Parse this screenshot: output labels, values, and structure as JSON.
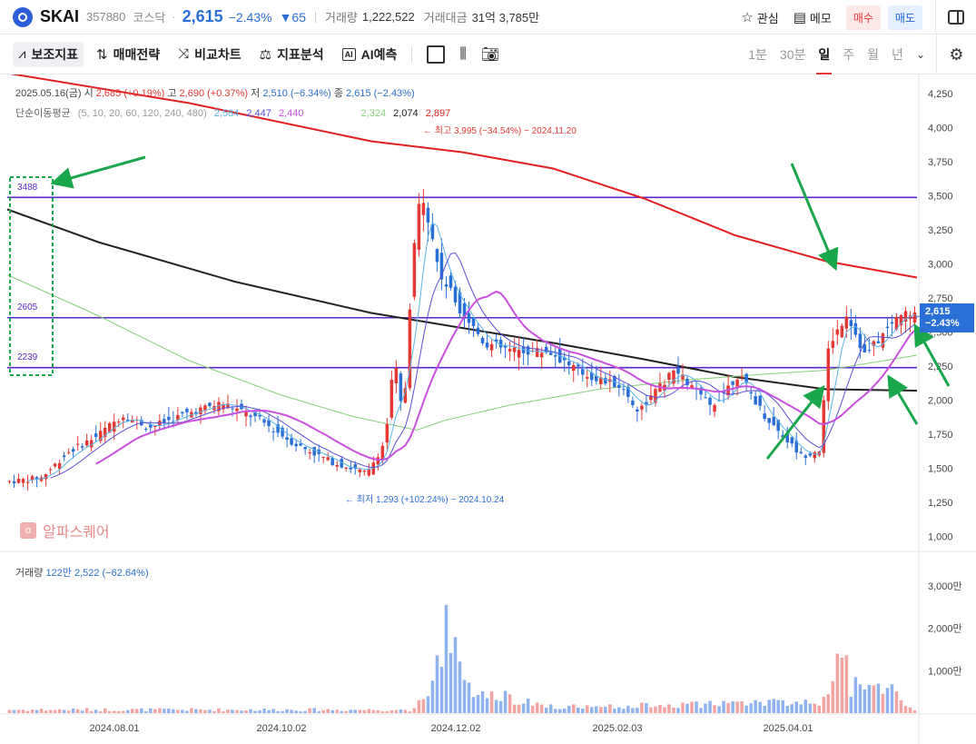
{
  "header": {
    "name": "SKAI",
    "code": "357880",
    "market": "코스닥",
    "price": "2,615",
    "change_pct": "−2.43%",
    "change": "▼65",
    "volume_label": "거래량",
    "volume_value": "1,222,522",
    "amount_label": "거래대금",
    "amount_value": "31억 3,785만",
    "watch_label": "관심",
    "memo_label": "메모",
    "buy_label": "매수",
    "sell_label": "매도"
  },
  "toolbar": {
    "indicators_label": "보조지표",
    "strategy_label": "매매전략",
    "compare_label": "비교차트",
    "analysis_label": "지표분석",
    "ai_icon_text": "AI",
    "ai_label": "AI예측",
    "periods": [
      "1분",
      "30분",
      "일",
      "주",
      "월",
      "년"
    ],
    "active_period": "일"
  },
  "ohlc": {
    "date": "2025.05.16(금)",
    "open_label": "시",
    "open_value": "2,685 (+0.19%)",
    "high_label": "고",
    "high_value": "2,690 (+0.37%)",
    "low_label": "저",
    "low_value": "2,510 (−6.34%)",
    "close_label": "종",
    "close_value": "2,615 (−2.43%)"
  },
  "ma": {
    "label": "단순이동평균",
    "periods": "(5, 10, 20, 60, 120, 240, 480)",
    "values": [
      "2,584",
      "2,447",
      "2,440",
      "2,324",
      "2,074",
      "2,897"
    ]
  },
  "volume": {
    "label": "거래량",
    "value": "122만 2,522 (−62.64%)"
  },
  "annotations": {
    "high": "← 최고 3,995 (−34.54%) − 2024.11.20",
    "low": "← 최저 1,293 (+102.24%) − 2024.10.24"
  },
  "price_tag": {
    "price": "2,615",
    "pct": "−2.43%"
  },
  "watermark": "알파스퀘어",
  "colors": {
    "up": "#e53935",
    "down": "#2a6fd6",
    "ma5": "#5ab4e8",
    "ma10": "#5a4fd6",
    "ma20": "#c94fe0",
    "ma60": "#86d07a",
    "ma120": "#222222",
    "ma240": "#e02020",
    "hline": "#5a28c8",
    "arrow": "#1aa64a"
  },
  "chart_data": {
    "type": "candlestick",
    "y_ticks": [
      "4,250",
      "4,000",
      "3,750",
      "3,500",
      "3,250",
      "3,000",
      "2,750",
      "2,500",
      "2,250",
      "2,000",
      "1,750",
      "1,500",
      "1,250",
      "1,000"
    ],
    "volume_ticks": [
      "3,000만",
      "2,000만",
      "1,000만"
    ],
    "x_labels": [
      "2024.08.01",
      "2024.10.02",
      "2024.12.02",
      "2025.02.03",
      "2025.04.01"
    ],
    "horizontal_lines": [
      {
        "label": "3488",
        "value": 3488
      },
      {
        "label": "2605",
        "value": 2605
      },
      {
        "label": "2239",
        "value": 2239
      }
    ],
    "current": {
      "open": 2685,
      "high": 2690,
      "low": 2510,
      "close": 2615
    },
    "period_high": 3995,
    "period_low": 1293,
    "ma_series": [
      {
        "name": "MA120",
        "points": [
          [
            0,
            3400
          ],
          [
            0.1,
            3160
          ],
          [
            0.25,
            2870
          ],
          [
            0.4,
            2640
          ],
          [
            0.5,
            2530
          ],
          [
            0.6,
            2420
          ],
          [
            0.7,
            2300
          ],
          [
            0.8,
            2170
          ],
          [
            0.9,
            2080
          ],
          [
            1,
            2070
          ]
        ]
      },
      {
        "name": "MA240",
        "points": [
          [
            0,
            4400
          ],
          [
            0.2,
            4180
          ],
          [
            0.4,
            3900
          ],
          [
            0.5,
            3820
          ],
          [
            0.6,
            3700
          ],
          [
            0.7,
            3480
          ],
          [
            0.8,
            3210
          ],
          [
            0.9,
            3020
          ],
          [
            1,
            2900
          ]
        ]
      },
      {
        "name": "MA60",
        "points": [
          [
            0,
            2920
          ],
          [
            0.1,
            2620
          ],
          [
            0.2,
            2290
          ],
          [
            0.3,
            2040
          ],
          [
            0.38,
            1880
          ],
          [
            0.45,
            1780
          ],
          [
            0.48,
            1850
          ],
          [
            0.55,
            1960
          ],
          [
            0.65,
            2080
          ],
          [
            0.75,
            2150
          ],
          [
            0.83,
            2190
          ],
          [
            0.9,
            2220
          ],
          [
            1,
            2330
          ]
        ]
      }
    ],
    "price_path": [
      [
        0,
        1400
      ],
      [
        0.04,
        1430
      ],
      [
        0.07,
        1620
      ],
      [
        0.1,
        1730
      ],
      [
        0.13,
        1890
      ],
      [
        0.16,
        1800
      ],
      [
        0.2,
        1900
      ],
      [
        0.24,
        1980
      ],
      [
        0.28,
        1860
      ],
      [
        0.32,
        1680
      ],
      [
        0.36,
        1550
      ],
      [
        0.4,
        1460
      ],
      [
        0.42,
        1700
      ],
      [
        0.43,
        2310
      ],
      [
        0.44,
        1840
      ],
      [
        0.45,
        3020
      ],
      [
        0.46,
        3570
      ],
      [
        0.48,
        2930
      ],
      [
        0.49,
        2820
      ],
      [
        0.5,
        2700
      ],
      [
        0.53,
        2420
      ],
      [
        0.56,
        2360
      ],
      [
        0.6,
        2360
      ],
      [
        0.64,
        2190
      ],
      [
        0.68,
        2100
      ],
      [
        0.7,
        1920
      ],
      [
        0.74,
        2220
      ],
      [
        0.78,
        1950
      ],
      [
        0.81,
        2190
      ],
      [
        0.84,
        1880
      ],
      [
        0.88,
        1590
      ],
      [
        0.9,
        1640
      ],
      [
        0.91,
        2400
      ],
      [
        0.93,
        2640
      ],
      [
        0.95,
        2330
      ],
      [
        0.97,
        2480
      ],
      [
        0.99,
        2640
      ],
      [
        1,
        2615
      ]
    ],
    "volume_path": [
      [
        0.45,
        600
      ],
      [
        0.47,
        1200
      ],
      [
        0.48,
        3200
      ],
      [
        0.49,
        2200
      ],
      [
        0.5,
        900
      ],
      [
        0.6,
        200
      ],
      [
        0.7,
        250
      ],
      [
        0.9,
        400
      ],
      [
        0.91,
        1300
      ],
      [
        0.92,
        2800
      ],
      [
        0.93,
        900
      ],
      [
        0.97,
        800
      ],
      [
        1,
        122
      ]
    ]
  }
}
